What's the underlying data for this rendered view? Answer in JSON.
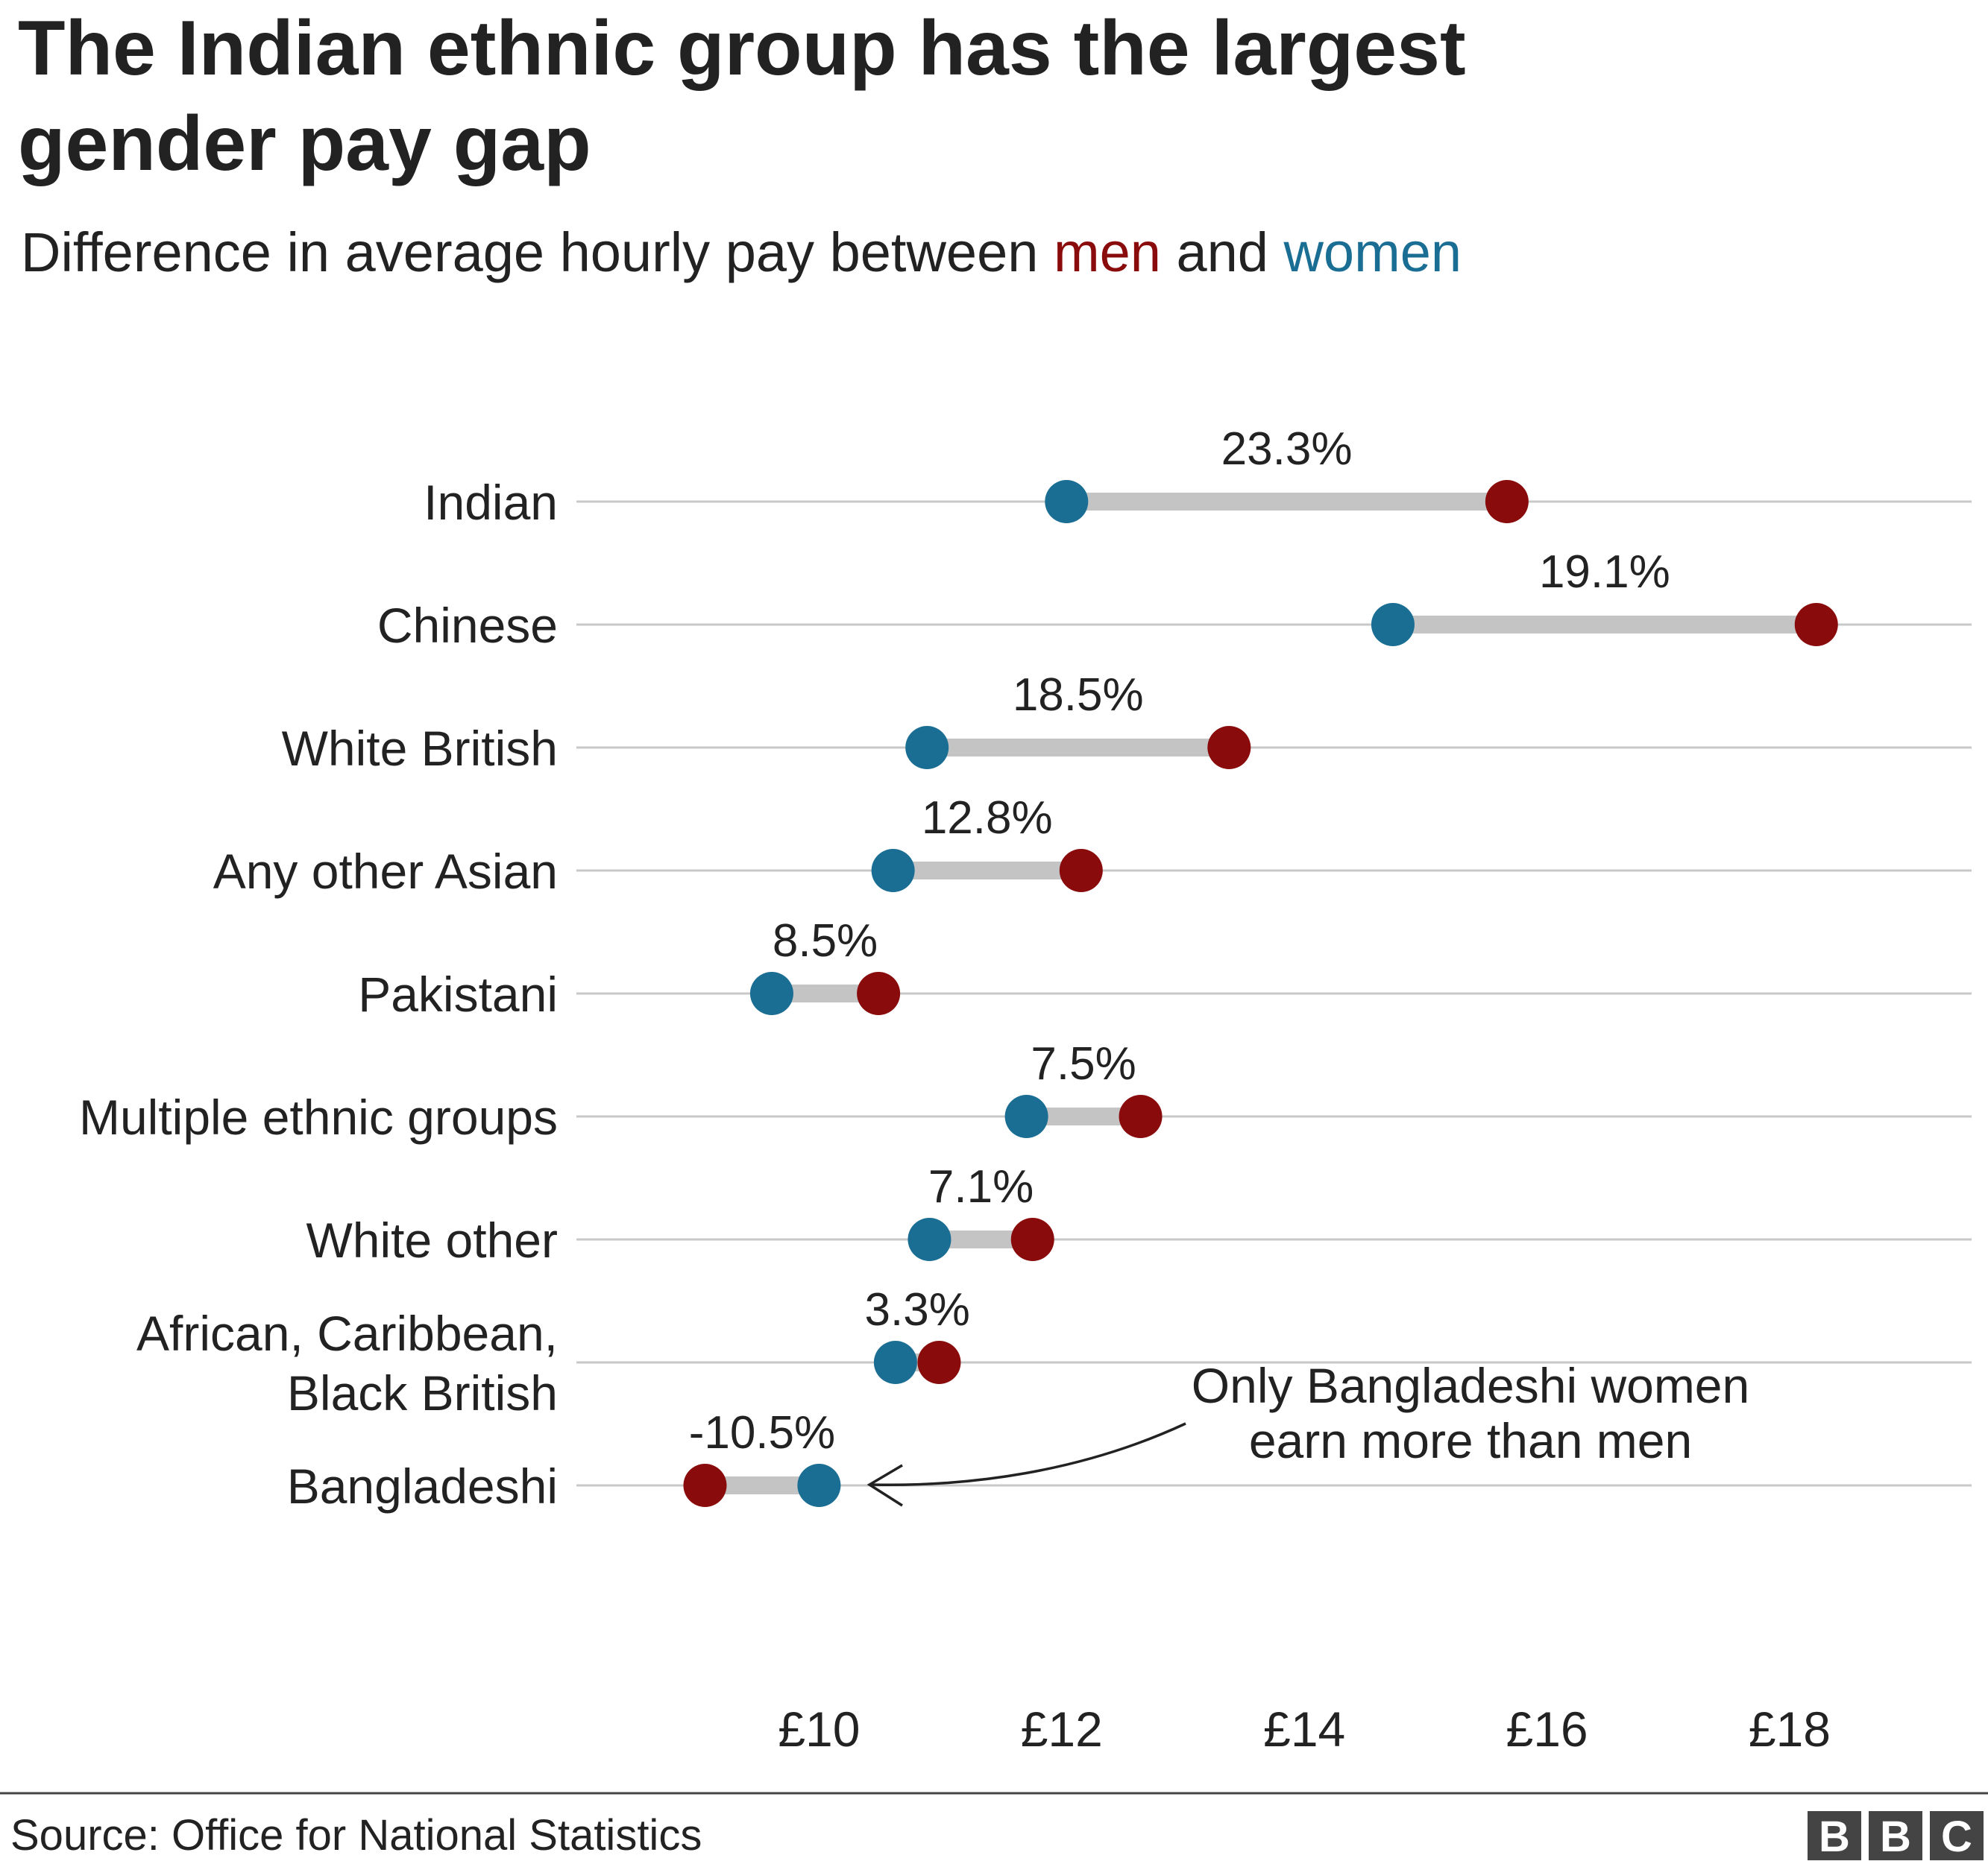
{
  "chart_data": {
    "type": "dumbbell",
    "title": [
      "The Indian ethnic group has the largest",
      "gender pay gap"
    ],
    "subtitle": [
      "Difference in average hourly pay between",
      "and"
    ],
    "categories": [
      "Indian",
      "Chinese",
      "White British",
      "Any other Asian",
      "Pakistani",
      "Multiple ethnic groups",
      "White other",
      [
        "African, Caribbean,",
        "Black British"
      ],
      "Bangladeshi"
    ],
    "series": [
      {
        "name": "men",
        "color": "#8a0b0b",
        "values": [
          15.67,
          18.22,
          13.38,
          12.16,
          10.49,
          12.65,
          11.76,
          10.99,
          9.06
        ]
      },
      {
        "name": "women",
        "color": "#1b6e93",
        "values": [
          12.04,
          14.73,
          10.89,
          10.61,
          9.61,
          11.71,
          10.91,
          10.63,
          10.0
        ]
      }
    ],
    "gap": {
      "values": [
        23.3,
        19.1,
        18.5,
        12.8,
        8.5,
        7.5,
        7.1,
        3.3,
        -10.5
      ],
      "value_labels": [
        "23.3%",
        "19.1%",
        "18.5%",
        "12.8%",
        "8.5%",
        "7.5%",
        "7.1%",
        "3.3%",
        "-10.5%"
      ]
    },
    "xlim": [
      8,
      19.5
    ],
    "xticks": [
      {
        "value": 10,
        "label": "£10"
      },
      {
        "value": 12,
        "label": "£12"
      },
      {
        "value": 14,
        "label": "£14"
      },
      {
        "value": 16,
        "label": "£16"
      },
      {
        "value": 18,
        "label": "£18"
      }
    ],
    "grid": true,
    "annotation": [
      "Only Bangladeshi women",
      "earn more than men"
    ],
    "source": "Source: Office for National Statistics",
    "logo": [
      "B",
      "B",
      "C"
    ]
  }
}
